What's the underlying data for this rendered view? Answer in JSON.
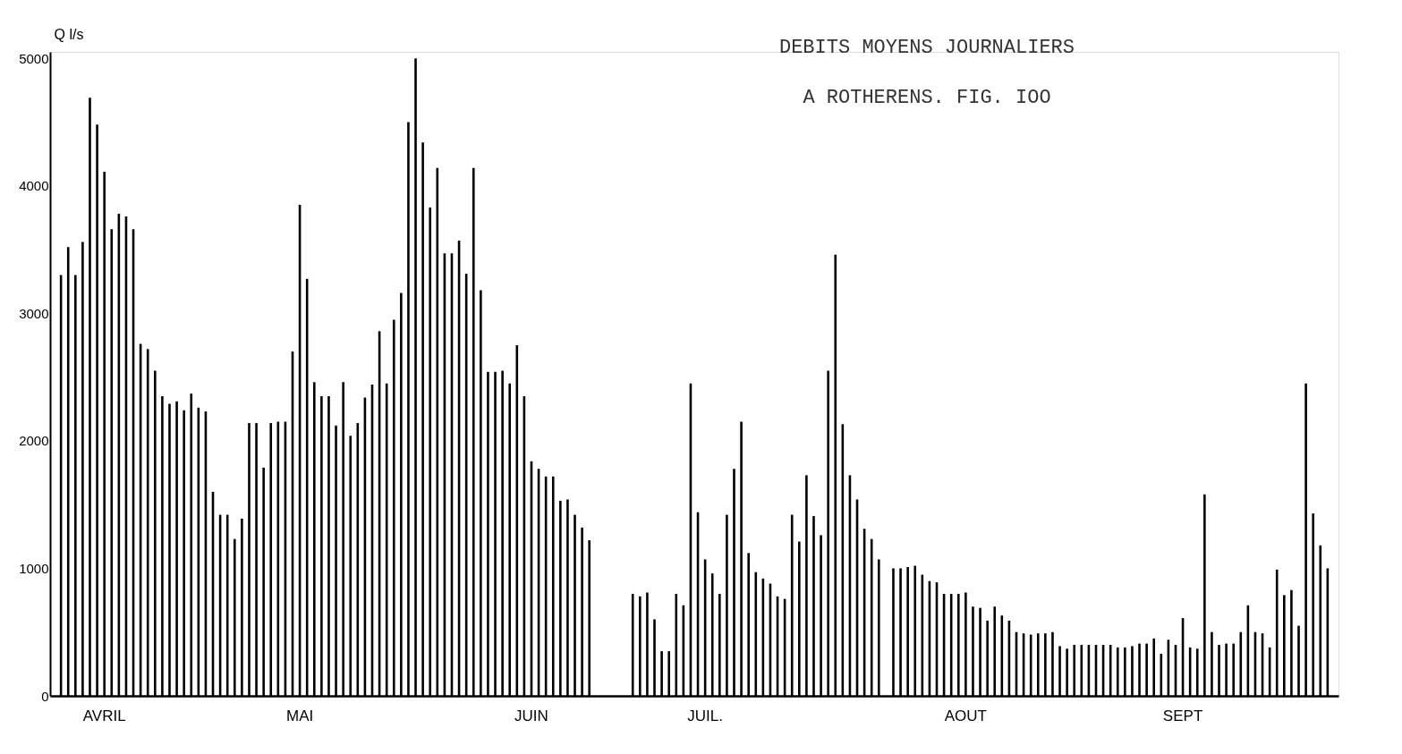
{
  "chart_data": {
    "type": "bar",
    "title": "DEBITS MOYENS JOURNALIERS",
    "subtitle": "A ROTHERENS.    FIG. IOO",
    "ylabel": "Q l/s",
    "categories": [
      null,
      null,
      null,
      null,
      null,
      null,
      "AVRIL",
      null,
      null,
      null,
      null,
      null,
      null,
      null,
      null,
      null,
      null,
      null,
      null,
      null,
      null,
      null,
      null,
      null,
      null,
      null,
      null,
      null,
      null,
      null,
      null,
      null,
      null,
      "MAI",
      null,
      null,
      null,
      null,
      null,
      null,
      null,
      null,
      null,
      null,
      null,
      null,
      null,
      null,
      null,
      null,
      null,
      null,
      null,
      null,
      null,
      null,
      null,
      null,
      null,
      null,
      null,
      null,
      null,
      null,
      null,
      "JUIN",
      null,
      null,
      null,
      null,
      null,
      null,
      null,
      null,
      null,
      null,
      null,
      null,
      null,
      null,
      null,
      null,
      null,
      null,
      null,
      null,
      null,
      null,
      null,
      "JUIL.",
      null,
      null,
      null,
      null,
      null,
      null,
      null,
      null,
      null,
      null,
      null,
      null,
      null,
      null,
      null,
      null,
      null,
      null,
      null,
      null,
      null,
      null,
      null,
      null,
      null,
      null,
      null,
      null,
      null,
      null,
      null,
      null,
      null,
      null,
      null,
      "AOUT",
      null,
      null,
      null,
      null,
      null,
      null,
      null,
      null,
      null,
      null,
      null,
      null,
      null,
      null,
      null,
      null,
      null,
      null,
      null,
      null,
      null,
      null,
      null,
      null,
      null,
      null,
      null,
      null,
      null,
      "SEPT",
      null,
      null,
      null,
      null,
      null,
      null,
      null,
      null,
      null,
      null,
      null,
      null,
      null,
      null,
      null,
      null,
      null,
      null,
      null,
      null
    ],
    "values": [
      3300,
      3520,
      3300,
      3560,
      4690,
      4480,
      4110,
      3660,
      3780,
      3760,
      3660,
      2760,
      2720,
      2550,
      2350,
      2290,
      2310,
      2240,
      2370,
      2260,
      2230,
      1600,
      1420,
      1420,
      1230,
      1390,
      2140,
      2140,
      1790,
      2140,
      2150,
      2150,
      2700,
      3850,
      3270,
      2460,
      2350,
      2350,
      2120,
      2460,
      2040,
      2140,
      2340,
      2440,
      2860,
      2450,
      2950,
      3160,
      4500,
      5000,
      4340,
      3830,
      4140,
      3470,
      3470,
      3570,
      3310,
      4140,
      3180,
      2540,
      2540,
      2550,
      2450,
      2750,
      2350,
      1840,
      1780,
      1720,
      1720,
      1530,
      1540,
      1420,
      1320,
      1220,
      null,
      null,
      null,
      null,
      null,
      800,
      780,
      810,
      600,
      350,
      350,
      800,
      710,
      2450,
      1440,
      1070,
      960,
      800,
      1420,
      1780,
      2150,
      1120,
      970,
      920,
      880,
      780,
      760,
      1420,
      1210,
      1730,
      1410,
      1260,
      2550,
      3460,
      2130,
      1730,
      1540,
      1310,
      1230,
      1070,
      null,
      1000,
      1000,
      1010,
      1020,
      950,
      900,
      890,
      800,
      800,
      800,
      810,
      700,
      690,
      590,
      700,
      630,
      590,
      500,
      490,
      480,
      490,
      490,
      500,
      390,
      370,
      400,
      400,
      400,
      400,
      400,
      400,
      380,
      380,
      390,
      410,
      410,
      450,
      330,
      440,
      400,
      610,
      380,
      370,
      1580,
      500,
      400,
      410,
      410,
      500,
      710,
      500,
      490,
      380,
      990,
      790,
      830,
      550,
      2450,
      1430,
      1180,
      1000
    ],
    "color": "#000000",
    "ylim": [
      0,
      5050
    ],
    "yticks": [
      0,
      1000,
      2000,
      3000,
      4000,
      5000
    ],
    "grid": false
  }
}
